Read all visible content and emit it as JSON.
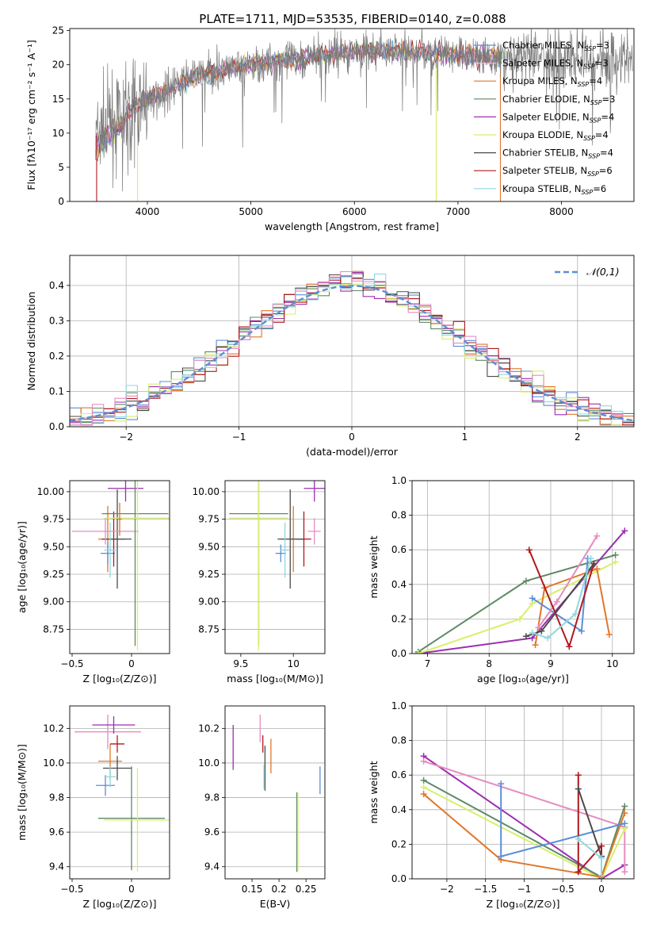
{
  "figure": {
    "title": "PLATE=1711, MJD=53535, FIBERID=0140, z=0.088"
  },
  "colors": {
    "Chabrier MILES": "#5b8fd6",
    "Salpeter MILES": "#e6b8e0",
    "Kroupa MILES": "#e0772a",
    "Chabrier ELODIE": "#5e8a64",
    "Salpeter ELODIE": "#9b2fb0",
    "Kroupa ELODIE": "#d8ef6a",
    "Chabrier STELIB": "#4a4a4a",
    "Salpeter STELIB": "#b0181e",
    "Kroupa STELIB": "#8fd8e0",
    "pink": "#e58cc0"
  },
  "chart_data": [
    {
      "id": "spectrum",
      "type": "line",
      "title": "PLATE=1711, MJD=53535, FIBERID=0140, z=0.088",
      "xlabel": "wavelength [Angstrom, rest frame]",
      "ylabel": "Flux [fλ10⁻¹⁷ erg cm⁻² s⁻¹ A⁻¹]",
      "xlim": [
        3250,
        8700
      ],
      "ylim": [
        0,
        25.3
      ],
      "xticks": [
        4000,
        5000,
        6000,
        7000,
        8000
      ],
      "yticks": [
        0,
        5,
        10,
        15,
        20,
        25
      ],
      "legend": "right",
      "legend_entries": [
        "Chabrier MILES, N_SSP=3",
        "Salpeter MILES, N_SSP=3",
        "Kroupa MILES, N_SSP=4",
        "Chabrier ELODIE, N_SSP=3",
        "Salpeter ELODIE, N_SSP=4",
        "Kroupa ELODIE, N_SSP=4",
        "Chabrier STELIB, N_SSP=4",
        "Salpeter STELIB, N_SSP=6",
        "Kroupa STELIB, N_SSP=6"
      ],
      "trend": {
        "x": [
          3500,
          3700,
          4000,
          4500,
          5000,
          5500,
          6000,
          6500,
          7000,
          7400
        ],
        "y": [
          9.5,
          12,
          15,
          18.5,
          20,
          21,
          22,
          22,
          21.5,
          21
        ]
      }
    },
    {
      "id": "residuals",
      "type": "histogram",
      "xlabel": "(data-model)/error",
      "ylabel": "Normed distribution",
      "xlim": [
        -2.5,
        2.5
      ],
      "ylim": [
        0,
        0.485
      ],
      "xticks": [
        -2,
        -1,
        0,
        1,
        2
      ],
      "yticks": [
        0.0,
        0.1,
        0.2,
        0.3,
        0.4
      ],
      "legend": "top-right",
      "legend_label": "𝒩(0,1)",
      "bin_width": 0.1
    },
    {
      "id": "age-vs-Z",
      "type": "errorbar",
      "xlabel": "Z [log₁₀(Z/Z⊙)]",
      "ylabel": "age  [log₁₀(age/yr)]",
      "xlim": [
        -0.52,
        0.32
      ],
      "ylim": [
        8.53,
        10.1
      ],
      "xticks": [
        -0.5,
        0.0
      ],
      "yticks": [
        8.75,
        9.0,
        9.25,
        9.5,
        9.75,
        10.0
      ],
      "points": [
        {
          "m": "Kroupa MILES",
          "x": -0.2,
          "y": 9.57,
          "xe": 0.08,
          "ye": 0.3
        },
        {
          "m": "Chabrier MILES",
          "x": -0.2,
          "y": 9.44,
          "xe": 0.06,
          "ye": 0.1
        },
        {
          "m": "Salpeter STELIB",
          "x": -0.15,
          "y": 9.57,
          "xe": 0.1,
          "ye": 0.25
        },
        {
          "m": "Chabrier STELIB",
          "x": -0.12,
          "y": 9.57,
          "xe": 0.12,
          "ye": 0.45
        },
        {
          "m": "Salpeter ELODIE",
          "x": -0.05,
          "y": 10.03,
          "xe": 0.15,
          "ye": 0.12
        },
        {
          "m": "pink",
          "x": -0.22,
          "y": 9.64,
          "xe": 0.28,
          "ye": 0.12
        },
        {
          "m": "Chabrier ELODIE",
          "x": 0.03,
          "y": 9.8,
          "xe": 0.28,
          "ye": 1.2
        },
        {
          "m": "Kroupa ELODIE",
          "x": 0.05,
          "y": 9.76,
          "xe": 0.28,
          "ye": 1.2
        },
        {
          "m": "Kroupa STELIB",
          "x": -0.18,
          "y": 9.47,
          "xe": 0.05,
          "ye": 0.25
        },
        {
          "m": "Kroupa MILES",
          "x": -0.1,
          "y": 9.75,
          "xe": 0.02,
          "ye": 0.15
        }
      ]
    },
    {
      "id": "age-vs-mass",
      "type": "errorbar",
      "xlabel": "mass [log₁₀(M/M⊙)]",
      "xlim": [
        9.35,
        10.3
      ],
      "ylim": [
        8.53,
        10.1
      ],
      "xticks": [
        9.5,
        10.0
      ],
      "yticks": [
        8.75,
        9.0,
        9.25,
        9.5,
        9.75,
        10.0
      ],
      "points": [
        {
          "m": "Kroupa MILES",
          "x": 10.0,
          "y": 9.57,
          "xe": 0.12,
          "ye": 0.3
        },
        {
          "m": "Chabrier MILES",
          "x": 9.88,
          "y": 9.44,
          "xe": 0.05,
          "ye": 0.08
        },
        {
          "m": "Salpeter STELIB",
          "x": 10.1,
          "y": 9.57,
          "xe": 0.07,
          "ye": 0.25
        },
        {
          "m": "Chabrier STELIB",
          "x": 9.97,
          "y": 9.57,
          "xe": 0.12,
          "ye": 0.45
        },
        {
          "m": "Salpeter ELODIE",
          "x": 10.2,
          "y": 10.03,
          "xe": 0.1,
          "ye": 0.12
        },
        {
          "m": "pink",
          "x": 10.2,
          "y": 9.64,
          "xe": 0.06,
          "ye": 0.12
        },
        {
          "m": "Chabrier ELODIE",
          "x": 9.67,
          "y": 9.8,
          "xe": 0.28,
          "ye": 1.2
        },
        {
          "m": "Kroupa ELODIE",
          "x": 9.67,
          "y": 9.76,
          "xe": 0.28,
          "ye": 1.2
        },
        {
          "m": "Kroupa STELIB",
          "x": 9.92,
          "y": 9.47,
          "xe": 0.04,
          "ye": 0.25
        }
      ]
    },
    {
      "id": "weight-vs-age",
      "type": "line",
      "xlabel": "age  [log₁₀(age/yr)]",
      "ylabel": "mass weight",
      "xlim": [
        6.75,
        10.35
      ],
      "ylim": [
        0,
        1
      ],
      "xticks": [
        7,
        8,
        9,
        10
      ],
      "yticks": [
        0.0,
        0.2,
        0.4,
        0.6,
        0.8,
        1.0
      ],
      "series": [
        {
          "m": "Chabrier ELODIE",
          "x": [
            6.85,
            8.6,
            10.05
          ],
          "y": [
            0.01,
            0.42,
            0.57
          ]
        },
        {
          "m": "Salpeter ELODIE",
          "x": [
            6.85,
            8.7,
            10.2
          ],
          "y": [
            0.0,
            0.09,
            0.71
          ]
        },
        {
          "m": "Kroupa ELODIE",
          "x": [
            6.85,
            8.5,
            8.7,
            10.05
          ],
          "y": [
            0.0,
            0.2,
            0.29,
            0.53
          ]
        },
        {
          "m": "Kroupa MILES",
          "x": [
            8.75,
            8.9,
            9.75,
            9.95
          ],
          "y": [
            0.05,
            0.38,
            0.49,
            0.11
          ]
        },
        {
          "m": "Chabrier MILES",
          "x": [
            8.7,
            9.5,
            9.6
          ],
          "y": [
            0.32,
            0.13,
            0.55
          ]
        },
        {
          "m": "pink",
          "x": [
            8.8,
            9.1,
            9.75
          ],
          "y": [
            0.15,
            0.3,
            0.68
          ]
        },
        {
          "m": "Salpeter STELIB",
          "x": [
            8.65,
            9.3,
            9.7
          ],
          "y": [
            0.6,
            0.04,
            0.52
          ]
        },
        {
          "m": "Chabrier STELIB",
          "x": [
            8.6,
            8.85,
            9.7
          ],
          "y": [
            0.1,
            0.13,
            0.52
          ]
        },
        {
          "m": "Kroupa STELIB",
          "x": [
            8.7,
            8.95,
            9.4,
            9.65
          ],
          "y": [
            0.12,
            0.09,
            0.23,
            0.55
          ]
        }
      ]
    },
    {
      "id": "mass-vs-Z",
      "type": "errorbar",
      "xlabel": "Z [log₁₀(Z/Z⊙)]",
      "ylabel": "mass [log₁₀(M/M⊙)]",
      "xlim": [
        -0.52,
        0.32
      ],
      "ylim": [
        9.33,
        10.33
      ],
      "xticks": [
        -0.5,
        0.0
      ],
      "yticks": [
        9.4,
        9.6,
        9.8,
        10.0,
        10.2
      ],
      "points": [
        {
          "m": "pink",
          "x": -0.2,
          "y": 10.18,
          "xe": 0.28,
          "ye": 0.1
        },
        {
          "m": "Salpeter ELODIE",
          "x": -0.15,
          "y": 10.22,
          "xe": 0.18,
          "ye": 0.05
        },
        {
          "m": "Kroupa MILES",
          "x": -0.18,
          "y": 10.01,
          "xe": 0.1,
          "ye": 0.1
        },
        {
          "m": "Salpeter STELIB",
          "x": -0.12,
          "y": 10.11,
          "xe": 0.06,
          "ye": 0.05
        },
        {
          "m": "Chabrier STELIB",
          "x": -0.12,
          "y": 9.97,
          "xe": 0.12,
          "ye": 0.07
        },
        {
          "m": "Chabrier MILES",
          "x": -0.22,
          "y": 9.87,
          "xe": 0.08,
          "ye": 0.06
        },
        {
          "m": "Kroupa STELIB",
          "x": -0.18,
          "y": 9.92,
          "xe": 0.05,
          "ye": 0.06
        },
        {
          "m": "Chabrier ELODIE",
          "x": 0.0,
          "y": 9.68,
          "xe": 0.28,
          "ye": 0.3
        },
        {
          "m": "Kroupa ELODIE",
          "x": 0.05,
          "y": 9.67,
          "xe": 0.28,
          "ye": 0.3
        }
      ]
    },
    {
      "id": "mass-vs-ebv",
      "type": "errorbar",
      "xlabel": "E(B-V)",
      "xlim": [
        0.1,
        0.285
      ],
      "ylim": [
        9.33,
        10.33
      ],
      "xticks": [
        0.15,
        0.2,
        0.25
      ],
      "yticks": [
        9.4,
        9.6,
        9.8,
        10.0,
        10.2
      ],
      "points": [
        {
          "m": "Salpeter ELODIE",
          "x": 0.115,
          "y": 10.09,
          "xe": 0,
          "ye": 0.13
        },
        {
          "m": "pink",
          "x": 0.165,
          "y": 10.2,
          "xe": 0,
          "ye": 0.08
        },
        {
          "m": "Salpeter STELIB",
          "x": 0.17,
          "y": 10.11,
          "xe": 0,
          "ye": 0.05
        },
        {
          "m": "Kroupa MILES",
          "x": 0.185,
          "y": 10.04,
          "xe": 0,
          "ye": 0.1
        },
        {
          "m": "Chabrier STELIB",
          "x": 0.174,
          "y": 9.97,
          "xe": 0,
          "ye": 0.13
        },
        {
          "m": "Kroupa STELIB",
          "x": 0.172,
          "y": 9.92,
          "xe": 0,
          "ye": 0.07
        },
        {
          "m": "Chabrier ELODIE",
          "x": 0.233,
          "y": 9.6,
          "xe": 0,
          "ye": 0.23
        },
        {
          "m": "Kroupa ELODIE",
          "x": 0.235,
          "y": 9.6,
          "xe": 0,
          "ye": 0.23
        },
        {
          "m": "Chabrier MILES",
          "x": 0.276,
          "y": 9.9,
          "xe": 0,
          "ye": 0.08
        }
      ]
    },
    {
      "id": "weight-vs-Z",
      "type": "line",
      "xlabel": "Z [log₁₀(Z/Z⊙)]",
      "ylabel": "mass weight",
      "xlim": [
        -2.45,
        0.42
      ],
      "ylim": [
        0,
        1
      ],
      "xticks": [
        -2.0,
        -1.5,
        -1.0,
        -0.5,
        0.0
      ],
      "yticks": [
        0.0,
        0.2,
        0.4,
        0.6,
        0.8,
        1.0
      ],
      "series": [
        {
          "m": "Salpeter ELODIE",
          "x": [
            -2.3,
            0.0,
            0.3
          ],
          "y": [
            0.71,
            0.0,
            0.08
          ]
        },
        {
          "m": "pink",
          "x": [
            -2.3,
            0.3,
            0.3
          ],
          "y": [
            0.68,
            0.3,
            0.04
          ]
        },
        {
          "m": "Chabrier ELODIE",
          "x": [
            -2.3,
            0.0,
            0.3
          ],
          "y": [
            0.57,
            0.01,
            0.42
          ]
        },
        {
          "m": "Kroupa ELODIE",
          "x": [
            -2.3,
            0.0,
            0.3
          ],
          "y": [
            0.53,
            0.0,
            0.29
          ]
        },
        {
          "m": "Kroupa MILES",
          "x": [
            -2.3,
            -1.3,
            0.0,
            0.3
          ],
          "y": [
            0.49,
            0.11,
            0.01,
            0.38
          ]
        },
        {
          "m": "Chabrier MILES",
          "x": [
            -1.3,
            -1.3,
            0.3
          ],
          "y": [
            0.55,
            0.13,
            0.32
          ]
        },
        {
          "m": "Salpeter STELIB",
          "x": [
            -0.3,
            -0.3,
            0.0,
            0.0
          ],
          "y": [
            0.6,
            0.04,
            0.19,
            0.0
          ]
        },
        {
          "m": "Chabrier STELIB",
          "x": [
            -0.3,
            0.0,
            0.0
          ],
          "y": [
            0.52,
            0.13,
            0.0
          ]
        },
        {
          "m": "Kroupa STELIB",
          "x": [
            -0.3,
            0.0,
            0.0
          ],
          "y": [
            0.23,
            0.12,
            0.02
          ]
        }
      ]
    }
  ]
}
